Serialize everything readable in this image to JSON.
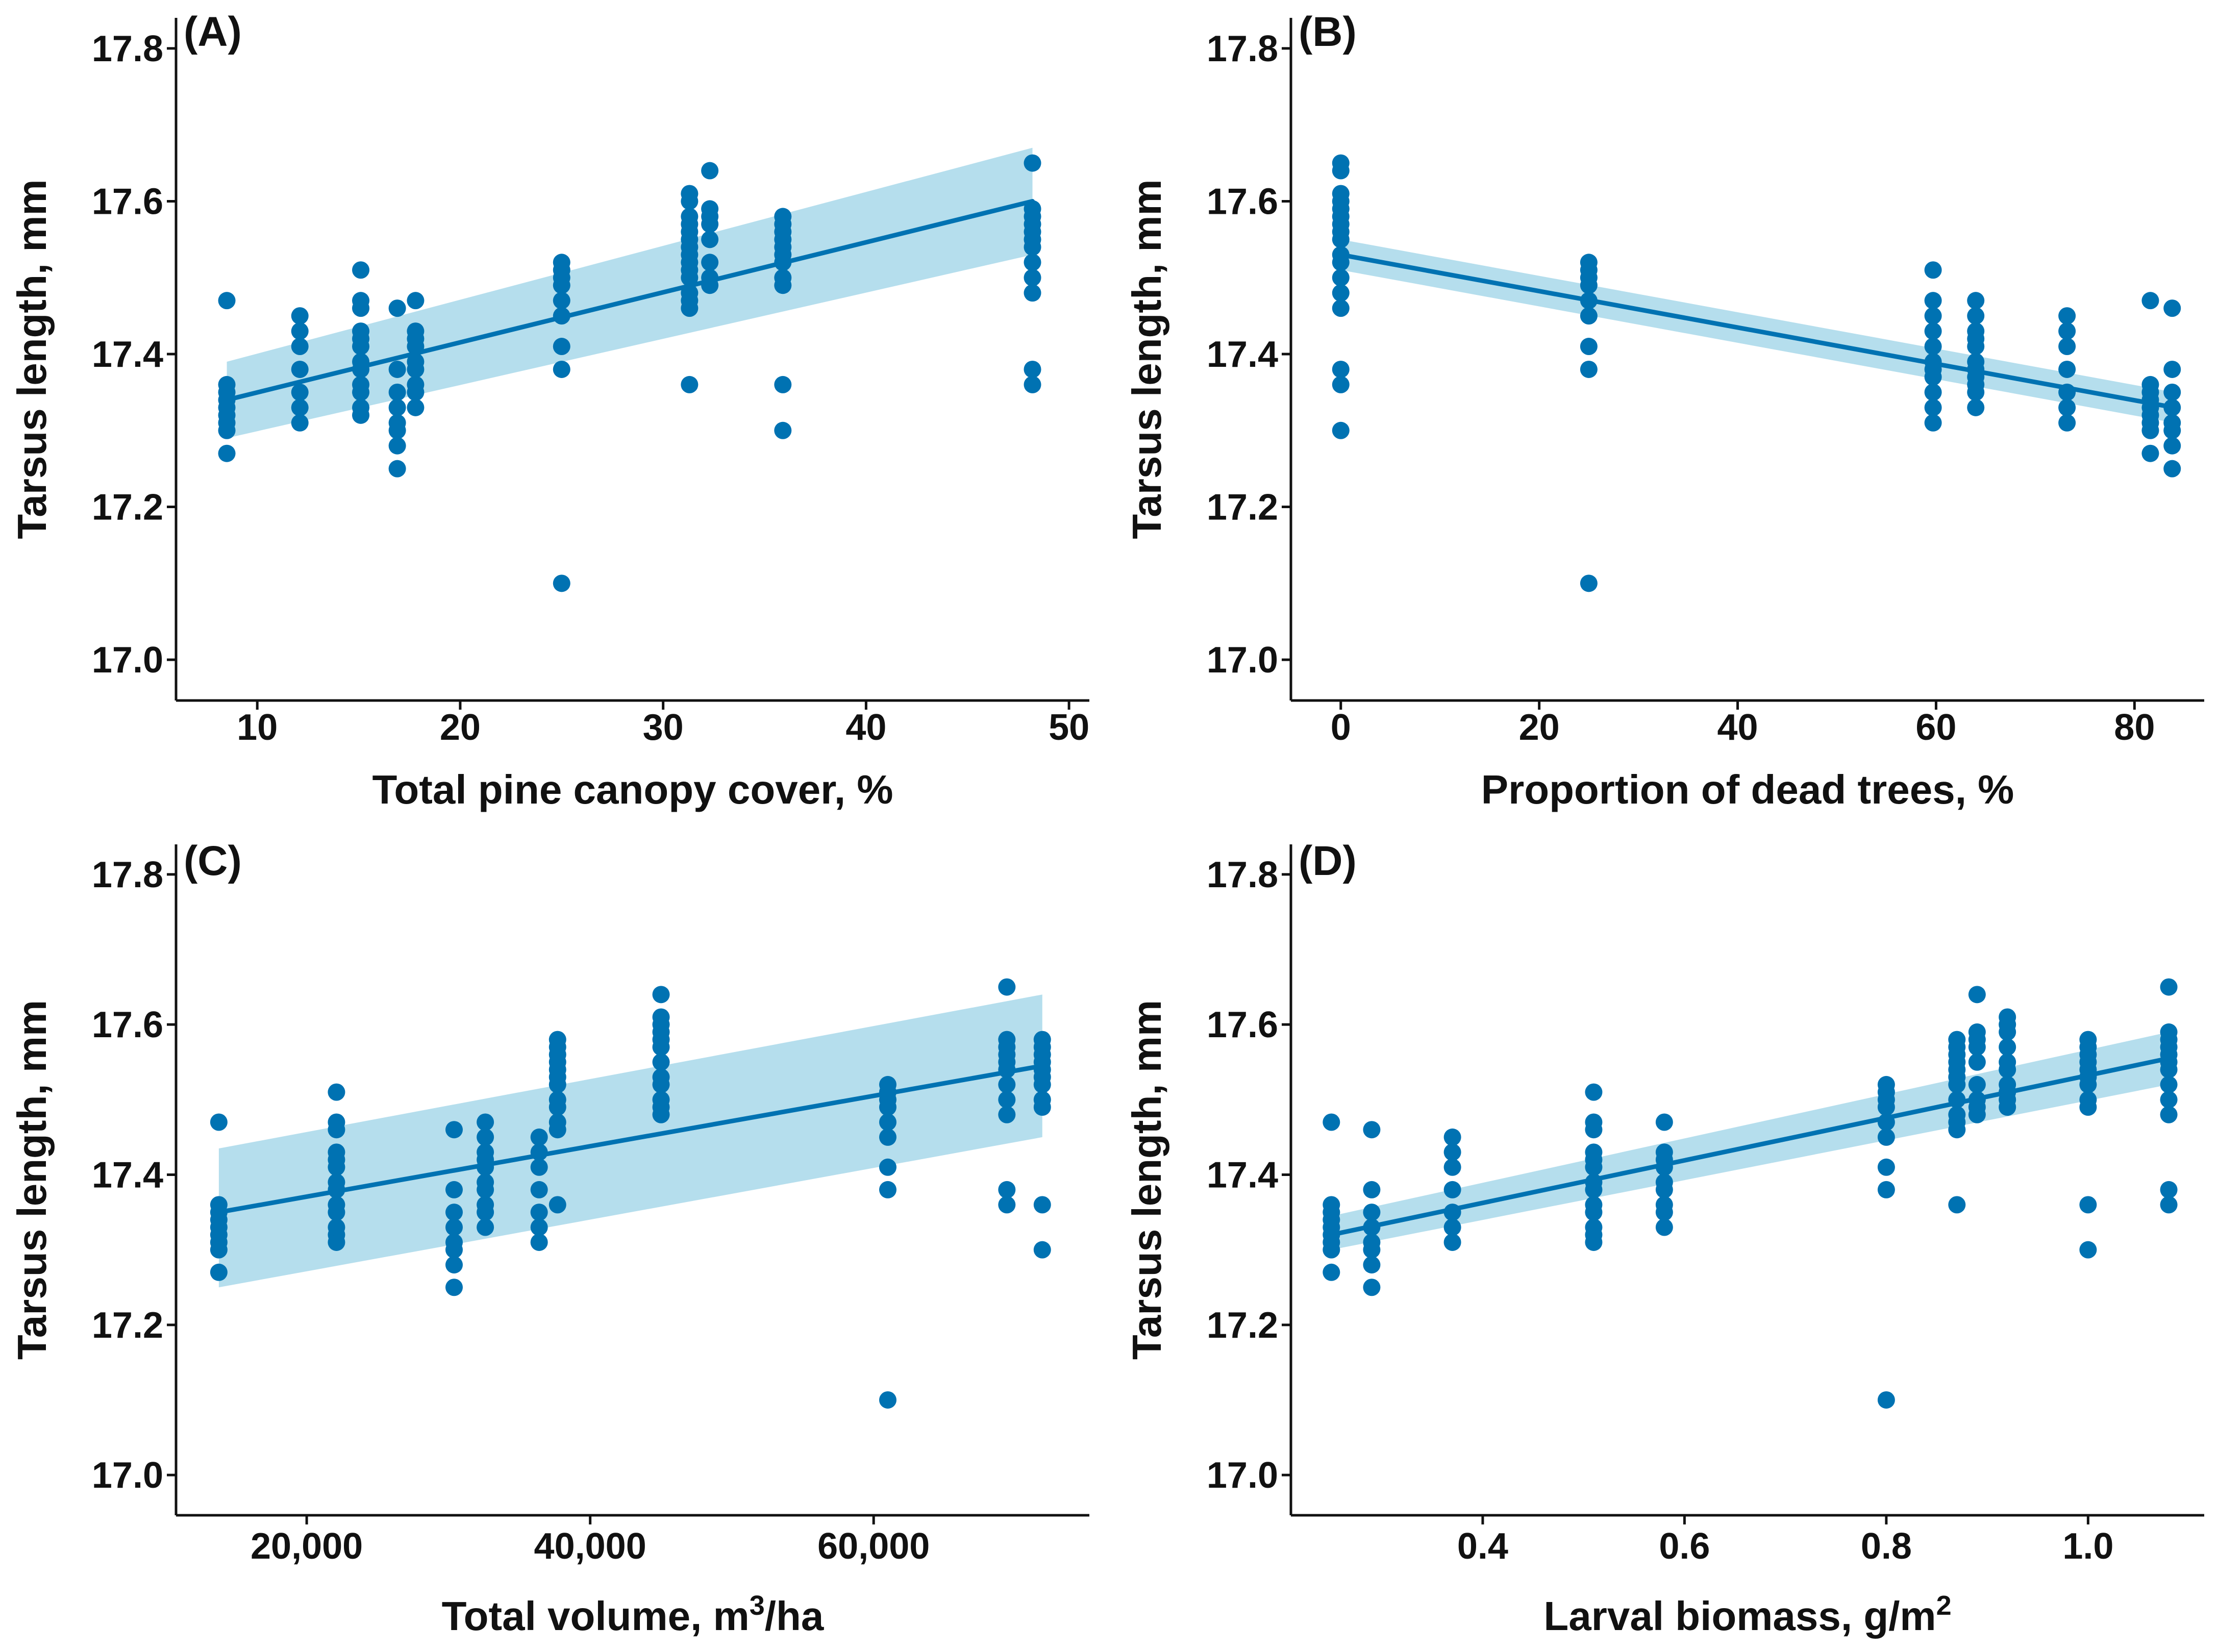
{
  "chart_data": [
    {
      "type": "scatter",
      "panel": "(A)",
      "xlabel": "Total pine canopy cover, %",
      "ylabel": "Tarsus length, mm",
      "xlim": [
        6.5,
        50.5
      ],
      "ylim": [
        16.96,
        17.84
      ],
      "xticks": [
        10,
        20,
        30,
        40,
        50
      ],
      "xtick_labels": [
        "10",
        "20",
        "30",
        "40",
        "50"
      ],
      "yticks": [
        17.0,
        17.2,
        17.4,
        17.6,
        17.8
      ],
      "ytick_labels": [
        "17.0",
        "17.2",
        "17.4",
        "17.6",
        "17.8"
      ],
      "fit": {
        "x": [
          8.5,
          48.2
        ],
        "y": [
          17.34,
          17.6
        ]
      },
      "ci_band": {
        "x": [
          8.5,
          48.2
        ],
        "lower": [
          17.29,
          17.53
        ],
        "upper": [
          17.39,
          17.67
        ]
      },
      "colors": {
        "points": "#0072b2",
        "line": "#0072b2",
        "band": "#a8d8ea"
      },
      "points": [
        {
          "x": 8.5,
          "y": [
            17.27,
            17.3,
            17.31,
            17.32,
            17.33,
            17.34,
            17.35,
            17.36,
            17.47
          ]
        },
        {
          "x": 12.1,
          "y": [
            17.31,
            17.33,
            17.35,
            17.38,
            17.41,
            17.43,
            17.45
          ]
        },
        {
          "x": 15.1,
          "y": [
            17.32,
            17.33,
            17.35,
            17.36,
            17.38,
            17.39,
            17.41,
            17.42,
            17.43,
            17.46,
            17.47,
            17.51
          ]
        },
        {
          "x": 16.9,
          "y": [
            17.25,
            17.28,
            17.3,
            17.31,
            17.33,
            17.35,
            17.38,
            17.46
          ]
        },
        {
          "x": 17.8,
          "y": [
            17.33,
            17.35,
            17.36,
            17.38,
            17.39,
            17.41,
            17.42,
            17.43,
            17.47
          ]
        },
        {
          "x": 25,
          "y": [
            17.1,
            17.38,
            17.41,
            17.45,
            17.47,
            17.49,
            17.5,
            17.51,
            17.52
          ]
        },
        {
          "x": 31.3,
          "y": [
            17.36,
            17.46,
            17.47,
            17.48,
            17.5,
            17.51,
            17.52,
            17.53,
            17.54,
            17.55,
            17.56,
            17.57,
            17.58,
            17.6,
            17.61
          ]
        },
        {
          "x": 32.3,
          "y": [
            17.49,
            17.5,
            17.52,
            17.55,
            17.57,
            17.58,
            17.59,
            17.64
          ]
        },
        {
          "x": 35.9,
          "y": [
            17.3,
            17.36,
            17.49,
            17.5,
            17.52,
            17.53,
            17.54,
            17.55,
            17.56,
            17.57,
            17.58
          ]
        },
        {
          "x": 48.2,
          "y": [
            17.36,
            17.38,
            17.48,
            17.5,
            17.52,
            17.54,
            17.55,
            17.56,
            17.57,
            17.58,
            17.59,
            17.65
          ]
        }
      ]
    },
    {
      "type": "scatter",
      "panel": "(B)",
      "xlabel": "Proportion of dead trees, %",
      "ylabel": "Tarsus length, mm",
      "xlim": [
        -4,
        86
      ],
      "ylim": [
        16.96,
        17.84
      ],
      "xticks": [
        0,
        20,
        40,
        60,
        80
      ],
      "xtick_labels": [
        "0",
        "20",
        "40",
        "60",
        "80"
      ],
      "yticks": [
        17.0,
        17.2,
        17.4,
        17.6,
        17.8
      ],
      "ytick_labels": [
        "17.0",
        "17.2",
        "17.4",
        "17.6",
        "17.8"
      ],
      "fit": {
        "x": [
          0,
          84
        ],
        "y": [
          17.53,
          17.33
        ]
      },
      "ci_band": {
        "x": [
          0,
          84
        ],
        "lower": [
          17.51,
          17.31
        ],
        "upper": [
          17.55,
          17.35
        ]
      },
      "colors": {
        "points": "#0072b2",
        "line": "#0072b2",
        "band": "#a8d8ea"
      },
      "points": [
        {
          "x": 0,
          "y": [
            17.3,
            17.36,
            17.38,
            17.46,
            17.48,
            17.5,
            17.52,
            17.53,
            17.55,
            17.56,
            17.57,
            17.58,
            17.59,
            17.6,
            17.61,
            17.64,
            17.65
          ]
        },
        {
          "x": 25,
          "y": [
            17.1,
            17.38,
            17.41,
            17.45,
            17.47,
            17.49,
            17.5,
            17.51,
            17.52
          ]
        },
        {
          "x": 59.7,
          "y": [
            17.31,
            17.33,
            17.35,
            17.37,
            17.38,
            17.39,
            17.41,
            17.43,
            17.45,
            17.47,
            17.51
          ]
        },
        {
          "x": 64,
          "y": [
            17.33,
            17.35,
            17.36,
            17.37,
            17.38,
            17.39,
            17.41,
            17.42,
            17.43,
            17.45,
            17.47
          ]
        },
        {
          "x": 73.2,
          "y": [
            17.31,
            17.33,
            17.35,
            17.38,
            17.41,
            17.43,
            17.45
          ]
        },
        {
          "x": 81.6,
          "y": [
            17.27,
            17.3,
            17.31,
            17.32,
            17.33,
            17.34,
            17.35,
            17.36,
            17.47
          ]
        },
        {
          "x": 83.8,
          "y": [
            17.25,
            17.28,
            17.3,
            17.31,
            17.33,
            17.35,
            17.38,
            17.46
          ]
        }
      ]
    },
    {
      "type": "scatter",
      "panel": "(C)",
      "xlabel": "Total volume, m³/ha",
      "ylabel": "Tarsus length, mm",
      "xlim": [
        11500,
        74500
      ],
      "ylim": [
        16.96,
        17.84
      ],
      "xticks": [
        20000,
        40000,
        60000
      ],
      "xtick_labels": [
        "20,000",
        "40,000",
        "60,000"
      ],
      "yticks": [
        17.0,
        17.2,
        17.4,
        17.6,
        17.8
      ],
      "ytick_labels": [
        "17.0",
        "17.2",
        "17.4",
        "17.6",
        "17.8"
      ],
      "fit": {
        "x": [
          13800,
          71900
        ],
        "y": [
          17.35,
          17.545
        ]
      },
      "ci_band": {
        "x": [
          13800,
          71900
        ],
        "lower": [
          17.25,
          17.45
        ],
        "upper": [
          17.435,
          17.64
        ]
      },
      "colors": {
        "points": "#0072b2",
        "line": "#0072b2",
        "band": "#a8d8ea"
      },
      "points": [
        {
          "x": 13800,
          "y": [
            17.27,
            17.3,
            17.31,
            17.32,
            17.33,
            17.34,
            17.35,
            17.36,
            17.47
          ]
        },
        {
          "x": 22100,
          "y": [
            17.31,
            17.32,
            17.33,
            17.35,
            17.36,
            17.38,
            17.39,
            17.41,
            17.42,
            17.43,
            17.46,
            17.47,
            17.51
          ]
        },
        {
          "x": 30400,
          "y": [
            17.25,
            17.28,
            17.3,
            17.31,
            17.33,
            17.35,
            17.38,
            17.46
          ]
        },
        {
          "x": 32600,
          "y": [
            17.33,
            17.35,
            17.36,
            17.38,
            17.39,
            17.41,
            17.42,
            17.43,
            17.45,
            17.47
          ]
        },
        {
          "x": 36400,
          "y": [
            17.31,
            17.33,
            17.35,
            17.38,
            17.41,
            17.43,
            17.45
          ]
        },
        {
          "x": 37700,
          "y": [
            17.36,
            17.46,
            17.47,
            17.49,
            17.5,
            17.52,
            17.53,
            17.54,
            17.55,
            17.56,
            17.57,
            17.58
          ]
        },
        {
          "x": 45000,
          "y": [
            17.48,
            17.49,
            17.5,
            17.52,
            17.53,
            17.55,
            17.57,
            17.58,
            17.59,
            17.6,
            17.61,
            17.64
          ]
        },
        {
          "x": 61000,
          "y": [
            17.1,
            17.38,
            17.41,
            17.45,
            17.47,
            17.49,
            17.5,
            17.51,
            17.52
          ]
        },
        {
          "x": 69400,
          "y": [
            17.36,
            17.38,
            17.48,
            17.5,
            17.52,
            17.54,
            17.55,
            17.56,
            17.57,
            17.58,
            17.65
          ]
        },
        {
          "x": 71900,
          "y": [
            17.3,
            17.36,
            17.49,
            17.5,
            17.52,
            17.53,
            17.54,
            17.55,
            17.56,
            17.57,
            17.58
          ]
        }
      ]
    },
    {
      "type": "scatter",
      "panel": "(D)",
      "xlabel": "Larval biomass, g/m²",
      "ylabel": "Tarsus length, mm",
      "xlim": [
        0.22,
        1.105
      ],
      "ylim": [
        16.96,
        17.84
      ],
      "xticks": [
        0.4,
        0.6,
        0.8,
        1.0
      ],
      "xtick_labels": [
        "0.4",
        "0.6",
        "0.8",
        "1.0"
      ],
      "yticks": [
        17.0,
        17.2,
        17.4,
        17.6,
        17.8
      ],
      "ytick_labels": [
        "17.0",
        "17.2",
        "17.4",
        "17.6",
        "17.8"
      ],
      "fit": {
        "x": [
          0.25,
          1.08
        ],
        "y": [
          17.32,
          17.555
        ]
      },
      "ci_band": {
        "x": [
          0.25,
          1.08
        ],
        "lower": [
          17.3,
          17.52
        ],
        "upper": [
          17.345,
          17.59
        ]
      },
      "colors": {
        "points": "#0072b2",
        "line": "#0072b2",
        "band": "#a8d8ea"
      },
      "points": [
        {
          "x": 0.25,
          "y": [
            17.27,
            17.3,
            17.31,
            17.32,
            17.33,
            17.34,
            17.35,
            17.36,
            17.47
          ]
        },
        {
          "x": 0.29,
          "y": [
            17.25,
            17.28,
            17.3,
            17.31,
            17.33,
            17.35,
            17.38,
            17.46
          ]
        },
        {
          "x": 0.37,
          "y": [
            17.31,
            17.33,
            17.35,
            17.38,
            17.41,
            17.43,
            17.45
          ]
        },
        {
          "x": 0.51,
          "y": [
            17.31,
            17.32,
            17.33,
            17.35,
            17.36,
            17.38,
            17.39,
            17.41,
            17.42,
            17.43,
            17.46,
            17.47,
            17.51
          ]
        },
        {
          "x": 0.58,
          "y": [
            17.33,
            17.35,
            17.36,
            17.38,
            17.39,
            17.41,
            17.42,
            17.43,
            17.47
          ]
        },
        {
          "x": 0.8,
          "y": [
            17.1,
            17.38,
            17.41,
            17.45,
            17.47,
            17.49,
            17.5,
            17.51,
            17.52
          ]
        },
        {
          "x": 0.87,
          "y": [
            17.36,
            17.46,
            17.47,
            17.48,
            17.5,
            17.52,
            17.53,
            17.54,
            17.55,
            17.56,
            17.57,
            17.58
          ]
        },
        {
          "x": 0.89,
          "y": [
            17.48,
            17.49,
            17.5,
            17.52,
            17.55,
            17.57,
            17.58,
            17.59,
            17.64
          ]
        },
        {
          "x": 0.92,
          "y": [
            17.49,
            17.5,
            17.51,
            17.52,
            17.54,
            17.55,
            17.57,
            17.59,
            17.6,
            17.61
          ]
        },
        {
          "x": 1.0,
          "y": [
            17.3,
            17.36,
            17.49,
            17.5,
            17.52,
            17.53,
            17.54,
            17.55,
            17.56,
            17.57,
            17.58
          ]
        },
        {
          "x": 1.08,
          "y": [
            17.36,
            17.38,
            17.48,
            17.5,
            17.52,
            17.54,
            17.55,
            17.56,
            17.57,
            17.58,
            17.59,
            17.65
          ]
        }
      ]
    }
  ]
}
